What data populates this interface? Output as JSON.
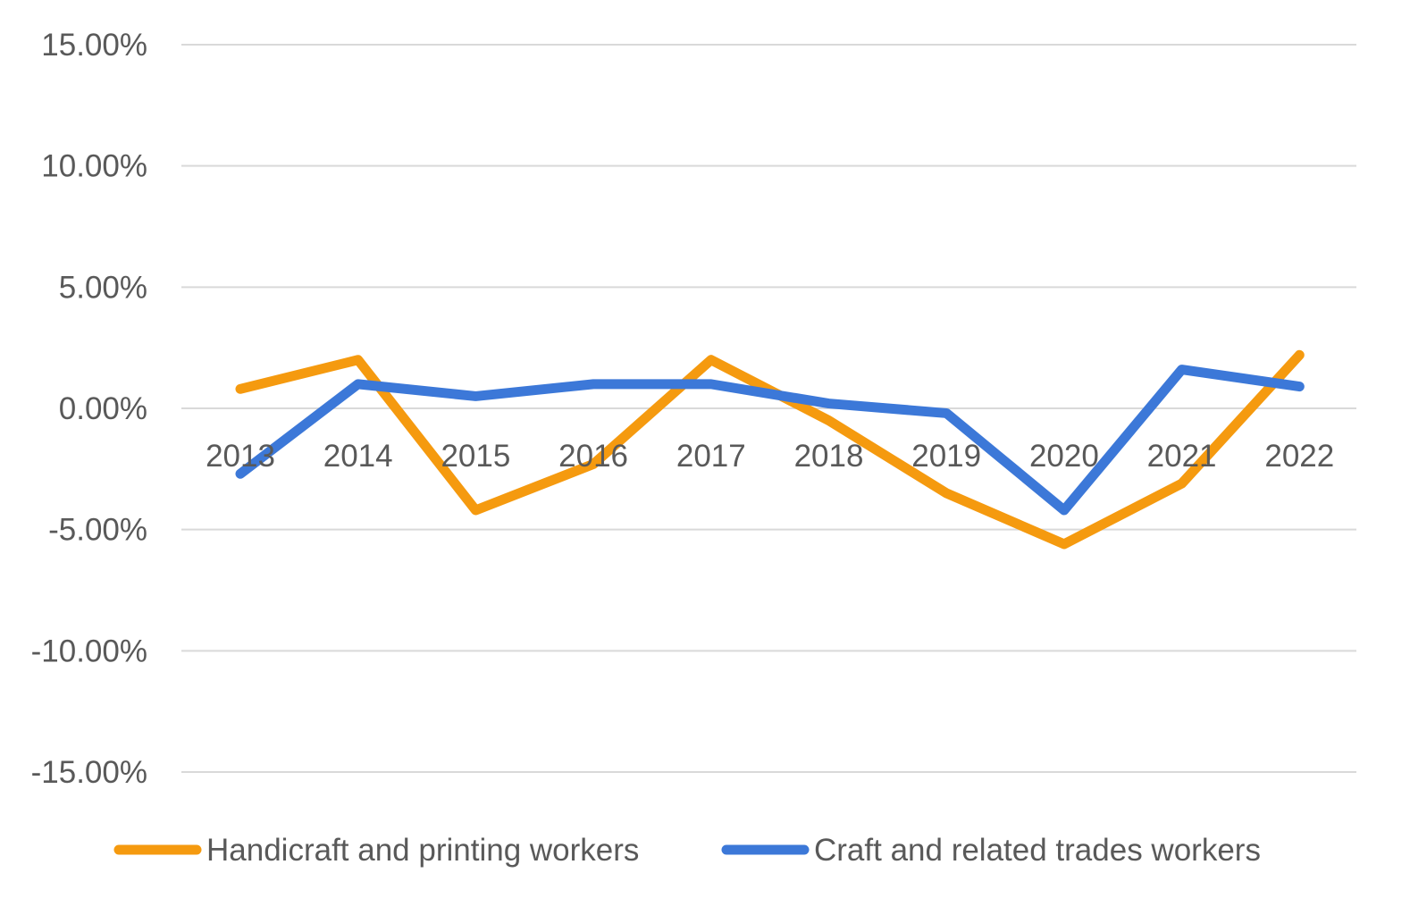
{
  "chart_data": {
    "type": "line",
    "title": "",
    "xlabel": "",
    "ylabel": "",
    "categories": [
      "2013",
      "2014",
      "2015",
      "2016",
      "2017",
      "2018",
      "2019",
      "2020",
      "2021",
      "2022"
    ],
    "y_ticks": [
      "15.00%",
      "10.00%",
      "5.00%",
      "0.00%",
      "-5.00%",
      "-10.00%",
      "-15.00%"
    ],
    "ylim": [
      -15,
      15
    ],
    "y_unit": "%",
    "grid": true,
    "legend_position": "bottom",
    "series": [
      {
        "name": "Handicraft and printing workers",
        "color": "#f59a0f",
        "values": [
          0.8,
          2.0,
          -4.2,
          -2.3,
          2.0,
          -0.5,
          -3.5,
          -5.6,
          -3.1,
          2.2
        ]
      },
      {
        "name": "Craft and related trades workers",
        "color": "#3c78d8",
        "values": [
          -2.7,
          1.0,
          0.5,
          1.0,
          1.0,
          0.2,
          -0.2,
          -4.2,
          1.6,
          0.9
        ]
      }
    ]
  }
}
